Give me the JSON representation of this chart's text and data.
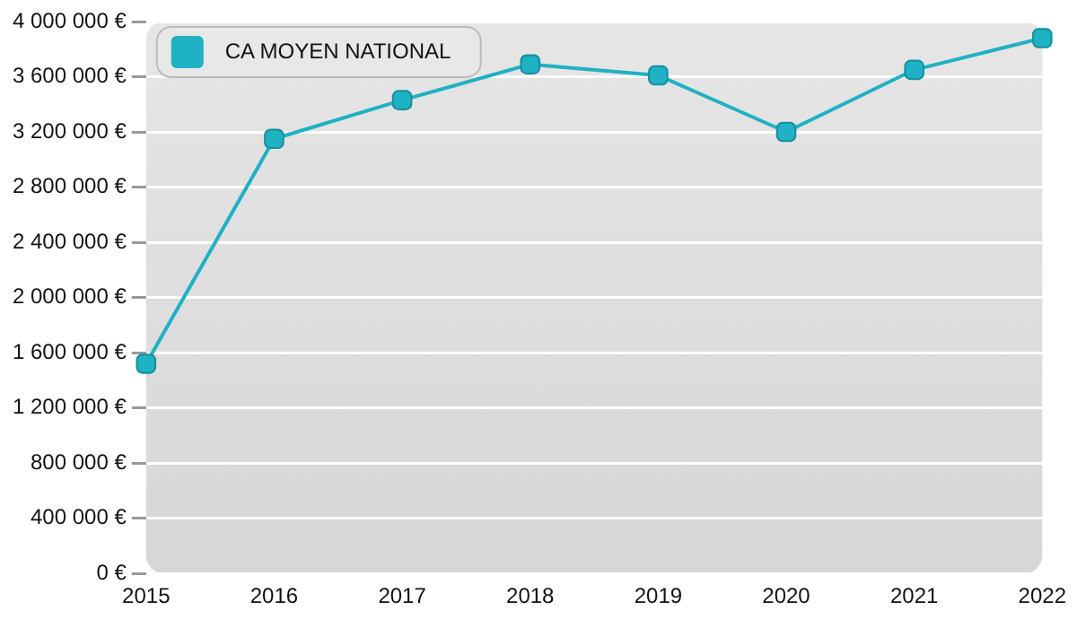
{
  "chart_data": {
    "type": "line",
    "categories": [
      "2015",
      "2016",
      "2017",
      "2018",
      "2019",
      "2020",
      "2021",
      "2022"
    ],
    "series": [
      {
        "name": "CA MOYEN NATIONAL",
        "color": "#1fb1c4",
        "values": [
          1520000,
          3150000,
          3430000,
          3690000,
          3610000,
          3200000,
          3650000,
          3880000
        ]
      }
    ],
    "ylim": [
      0,
      4000000
    ],
    "yticks": [
      {
        "value": 0,
        "label": "0 €"
      },
      {
        "value": 400000,
        "label": "400 000 €"
      },
      {
        "value": 800000,
        "label": "800 000 €"
      },
      {
        "value": 1200000,
        "label": "1 200 000 €"
      },
      {
        "value": 1600000,
        "label": "1 600 000 €"
      },
      {
        "value": 2000000,
        "label": "2 000 000 €"
      },
      {
        "value": 2400000,
        "label": "2 400 000 €"
      },
      {
        "value": 2800000,
        "label": "2 800 000 €"
      },
      {
        "value": 3200000,
        "label": "3 200 000 €"
      },
      {
        "value": 3600000,
        "label": "3 600 000 €"
      },
      {
        "value": 4000000,
        "label": "4 000 000 €"
      }
    ],
    "grid": "y",
    "legend": "top left",
    "marker": "square",
    "line_style": "solid"
  }
}
